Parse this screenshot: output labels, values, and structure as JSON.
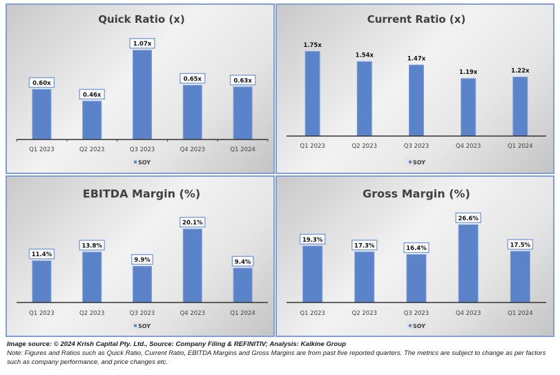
{
  "colors": {
    "bar": "#5a83c9",
    "bar_stroke": "#7c9fdb",
    "label_box_stroke": "#7f9fd8",
    "axis": "#333333",
    "panel_border": "#7f9fd8"
  },
  "chart_data": [
    {
      "type": "bar",
      "title": "Quick Ratio  (x)",
      "categories": [
        "Q1 2023",
        "Q2 2023",
        "Q3 2023",
        "Q4 2023",
        "Q1 2024"
      ],
      "series": [
        {
          "name": "SOY",
          "values": [
            0.6,
            0.46,
            1.07,
            0.65,
            0.63
          ]
        }
      ],
      "data_labels": [
        "0.60x",
        "0.46x",
        "1.07x",
        "0.65x",
        "0.63x"
      ],
      "label_style": "boxed",
      "axis_ticks": true,
      "legend": "bottom",
      "xlabel": "",
      "ylabel": "",
      "ylim": [
        0,
        1.2
      ],
      "grid": false
    },
    {
      "type": "bar",
      "title": "Current Ratio (x)",
      "categories": [
        "Q1 2023",
        "Q2 2023",
        "Q3 2023",
        "Q4 2023",
        "Q1 2024"
      ],
      "series": [
        {
          "name": "SOY",
          "values": [
            1.75,
            1.54,
            1.47,
            1.19,
            1.22
          ]
        }
      ],
      "data_labels": [
        "1.75x",
        "1.54x",
        "1.47x",
        "1.19x",
        "1.22x"
      ],
      "label_style": "plain",
      "axis_ticks": false,
      "legend": "bottom",
      "xlabel": "",
      "ylabel": "",
      "ylim": [
        0,
        2.0
      ],
      "grid": false
    },
    {
      "type": "bar",
      "title": "EBITDA Margin (%)",
      "categories": [
        "Q1 2023",
        "Q2 2023",
        "Q3 2023",
        "Q4 2023",
        "Q1 2024"
      ],
      "series": [
        {
          "name": "SOY",
          "values": [
            11.4,
            13.8,
            9.9,
            20.1,
            9.4
          ]
        }
      ],
      "data_labels": [
        "11.4%",
        "13.8%",
        "9.9%",
        "20.1%",
        "9.4%"
      ],
      "label_style": "boxed",
      "axis_ticks": false,
      "legend": "bottom",
      "xlabel": "",
      "ylabel": "",
      "ylim": [
        0,
        24
      ],
      "grid": false
    },
    {
      "type": "bar",
      "title": "Gross Margin (%)",
      "categories": [
        "Q1 2023",
        "Q2 2023",
        "Q3 2023",
        "Q4 2023",
        "Q1 2024"
      ],
      "series": [
        {
          "name": "SOY",
          "values": [
            19.3,
            17.3,
            16.4,
            26.6,
            17.5
          ]
        }
      ],
      "data_labels": [
        "19.3%",
        "17.3%",
        "16.4%",
        "26.6%",
        "17.5%"
      ],
      "label_style": "boxed",
      "axis_ticks": false,
      "legend": "bottom",
      "xlabel": "",
      "ylabel": "",
      "ylim": [
        0,
        30
      ],
      "grid": false
    }
  ],
  "footer": {
    "source": "Image source: © 2024 Krish Capital Pty. Ltd., Source: Company Filing & REFINITIV; Analysis: Kalkine Group",
    "note": "Note: Figures and Ratios such as Quick Ratio, Current Ratio, EBITDA Margins and Gross Margins are from past five reported quarters. The metrics are subject to change as per factors such as company performance, and price changes etc."
  }
}
